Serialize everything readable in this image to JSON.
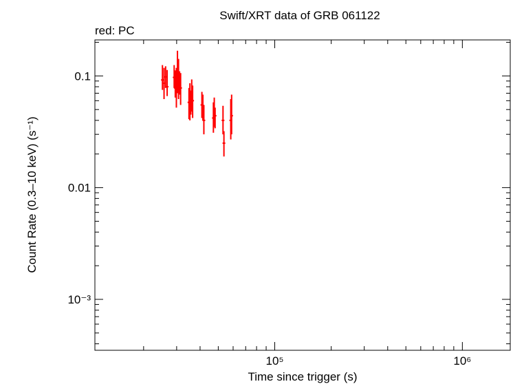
{
  "chart_data": {
    "type": "scatter",
    "title": "Swift/XRT data of GRB 061122",
    "subtitle": "red: PC",
    "xlabel": "Time since trigger (s)",
    "ylabel": "Count Rate (0.3–10 keV) (s⁻¹)",
    "x_scale": "log",
    "y_scale": "log",
    "xlim": [
      11000,
      1800000
    ],
    "ylim": [
      0.00035,
      0.21
    ],
    "x_ticks": [
      {
        "value": 100000,
        "label": "10⁵"
      },
      {
        "value": 1000000,
        "label": "10⁶"
      }
    ],
    "y_ticks": [
      {
        "value": 0.1,
        "label": "0.1"
      },
      {
        "value": 0.01,
        "label": "0.01"
      },
      {
        "value": 0.001,
        "label": "10⁻³"
      }
    ],
    "grid": false,
    "series": [
      {
        "name": "PC",
        "color": "#ff0000",
        "points": [
          {
            "x": 25200,
            "y": 0.092,
            "ylo": 0.075,
            "yhi": 0.125
          },
          {
            "x": 25700,
            "y": 0.086,
            "ylo": 0.062,
            "yhi": 0.118
          },
          {
            "x": 26200,
            "y": 0.098,
            "ylo": 0.078,
            "yhi": 0.122
          },
          {
            "x": 26700,
            "y": 0.08,
            "ylo": 0.066,
            "yhi": 0.113
          },
          {
            "x": 29100,
            "y": 0.097,
            "ylo": 0.078,
            "yhi": 0.125
          },
          {
            "x": 29500,
            "y": 0.078,
            "ylo": 0.064,
            "yhi": 0.112
          },
          {
            "x": 29900,
            "y": 0.082,
            "ylo": 0.052,
            "yhi": 0.118
          },
          {
            "x": 30300,
            "y": 0.112,
            "ylo": 0.07,
            "yhi": 0.168
          },
          {
            "x": 30700,
            "y": 0.085,
            "ylo": 0.062,
            "yhi": 0.142
          },
          {
            "x": 31100,
            "y": 0.088,
            "ylo": 0.068,
            "yhi": 0.11
          },
          {
            "x": 31500,
            "y": 0.078,
            "ylo": 0.055,
            "yhi": 0.106
          },
          {
            "x": 34900,
            "y": 0.058,
            "ylo": 0.041,
            "yhi": 0.078
          },
          {
            "x": 35300,
            "y": 0.062,
            "ylo": 0.04,
            "yhi": 0.086
          },
          {
            "x": 35700,
            "y": 0.058,
            "ylo": 0.045,
            "yhi": 0.074
          },
          {
            "x": 36100,
            "y": 0.065,
            "ylo": 0.048,
            "yhi": 0.093
          },
          {
            "x": 36500,
            "y": 0.06,
            "ylo": 0.042,
            "yhi": 0.082
          },
          {
            "x": 40900,
            "y": 0.055,
            "ylo": 0.042,
            "yhi": 0.072
          },
          {
            "x": 41400,
            "y": 0.052,
            "ylo": 0.04,
            "yhi": 0.068
          },
          {
            "x": 41900,
            "y": 0.04,
            "ylo": 0.03,
            "yhi": 0.055
          },
          {
            "x": 47100,
            "y": 0.042,
            "ylo": 0.031,
            "yhi": 0.058
          },
          {
            "x": 47600,
            "y": 0.046,
            "ylo": 0.035,
            "yhi": 0.064
          },
          {
            "x": 48100,
            "y": 0.044,
            "ylo": 0.034,
            "yhi": 0.052
          },
          {
            "x": 53000,
            "y": 0.04,
            "ylo": 0.03,
            "yhi": 0.054
          },
          {
            "x": 53600,
            "y": 0.025,
            "ylo": 0.019,
            "yhi": 0.032
          },
          {
            "x": 58300,
            "y": 0.04,
            "ylo": 0.027,
            "yhi": 0.062
          },
          {
            "x": 58900,
            "y": 0.044,
            "ylo": 0.03,
            "yhi": 0.068
          }
        ]
      }
    ]
  }
}
